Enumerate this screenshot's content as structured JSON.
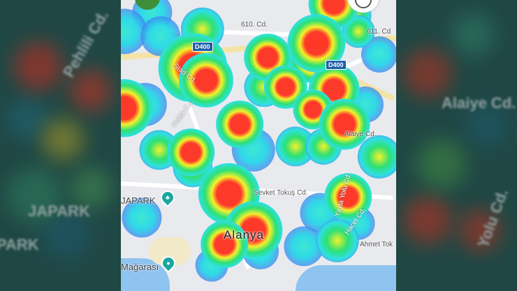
{
  "map": {
    "city_label": "Alanya",
    "roads": {
      "r610": "610. Cd.",
      "r611": "611. Cd",
      "d400_a": "D400",
      "d400_b": "D400",
      "stad": "Stad Cd.",
      "politik": "Politik Cd.",
      "alaiye": "Alaiye Cd.",
      "sevket": "Şevket Tokuş Cd.",
      "yayla": "Yayla Yolu Cd.",
      "hacet": "Hacet Cd.",
      "ahmet": "Ahmet Tok"
    },
    "pois": {
      "aquapark": "JAPARK",
      "cave": "Mağarası"
    },
    "icons": {
      "aquapark": "park-pin-icon",
      "cave": "camera-pin-icon"
    }
  },
  "background": {
    "left_texts": [
      "Pehlili Cd.",
      "JAPARK",
      "PARK"
    ],
    "right_texts": [
      "Alaiye Cd.",
      "Yolu Cd."
    ]
  },
  "colors": {
    "heat_high": "#ff2a1a",
    "heat_mid": "#f6f21a",
    "heat_low": "#1ee06a",
    "heat_edge": "#2e6cf0",
    "sea": "#8fc3f0"
  }
}
